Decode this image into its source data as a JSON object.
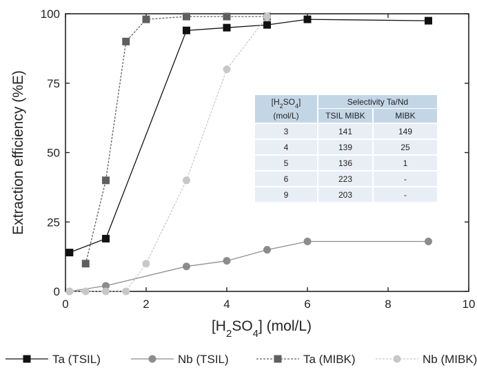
{
  "chart_data": {
    "type": "line",
    "xlabel": "[H2SO4] (mol/L)",
    "ylabel": "Extraction efficiency (%E)",
    "xlim": [
      0,
      10
    ],
    "ylim": [
      0,
      100
    ],
    "xticks": [
      0,
      2,
      4,
      6,
      8,
      10
    ],
    "yticks": [
      0,
      25,
      50,
      75,
      100
    ],
    "grid": false,
    "legend_position": "bottom",
    "series": [
      {
        "name": "Ta (TSIL)",
        "color": "#111111",
        "marker": "square",
        "line_style": "solid",
        "points": [
          [
            0.1,
            14
          ],
          [
            1,
            19
          ],
          [
            3,
            94
          ],
          [
            4,
            95
          ],
          [
            5,
            96
          ],
          [
            6,
            98
          ],
          [
            9,
            97.5
          ]
        ]
      },
      {
        "name": "Nb (TSIL)",
        "color": "#8c8c8c",
        "marker": "circle",
        "line_style": "solid",
        "points": [
          [
            0.1,
            0
          ],
          [
            1,
            2
          ],
          [
            3,
            9
          ],
          [
            4,
            11
          ],
          [
            5,
            15
          ],
          [
            6,
            18
          ],
          [
            9,
            18
          ]
        ]
      },
      {
        "name": "Ta (MIBK)",
        "color": "#5f5f5f",
        "marker": "square",
        "line_style": "dashed",
        "points": [
          [
            0.5,
            10
          ],
          [
            1,
            40
          ],
          [
            1.5,
            90
          ],
          [
            2,
            98
          ],
          [
            3,
            99
          ],
          [
            4,
            99
          ],
          [
            5,
            99
          ]
        ]
      },
      {
        "name": "Nb (MIBK)",
        "color": "#c8c8c8",
        "marker": "circle",
        "line_style": "dashed",
        "points": [
          [
            0.1,
            0
          ],
          [
            0.5,
            0
          ],
          [
            1,
            0
          ],
          [
            1.5,
            0
          ],
          [
            2,
            10
          ],
          [
            3,
            40
          ],
          [
            4,
            80
          ],
          [
            5,
            99
          ]
        ]
      }
    ],
    "inset_table": {
      "group_header": "Selectivity Ta/Nd",
      "row_header_line1": "[H2SO4]",
      "row_header_line2": "(mol/L)",
      "columns": [
        "TSIL MIBK",
        "MIBK"
      ],
      "rows": [
        [
          "3",
          "141",
          "149"
        ],
        [
          "4",
          "139",
          "25"
        ],
        [
          "5",
          "136",
          "1"
        ],
        [
          "6",
          "223",
          "-"
        ],
        [
          "9",
          "203",
          "-"
        ]
      ]
    }
  }
}
